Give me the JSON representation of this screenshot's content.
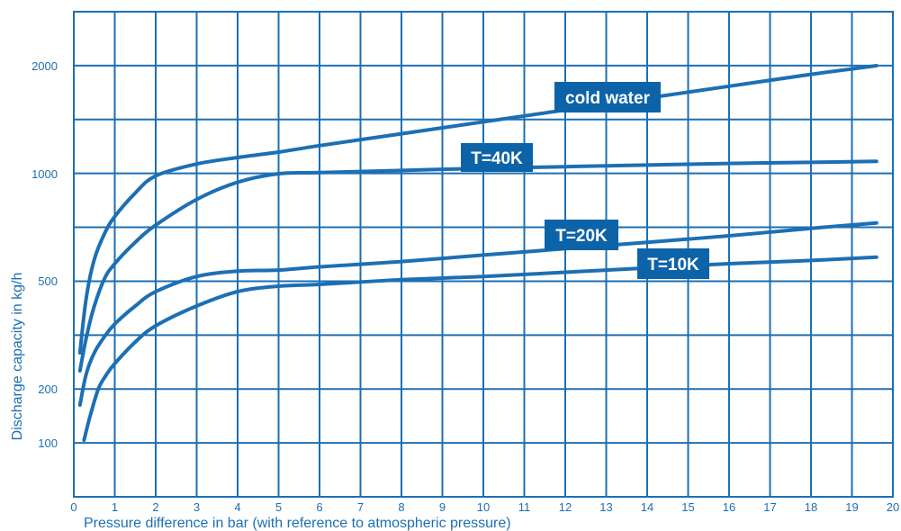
{
  "chart_data": {
    "type": "line",
    "xlabel": "Pressure difference in bar (with reference to atmospheric pressure)",
    "ylabel": "Discharge capacity in kg/h",
    "xlim": [
      0,
      20
    ],
    "x_ticks": [
      "0",
      "1",
      "2",
      "3",
      "4",
      "5",
      "6",
      "7",
      "8",
      "9",
      "10",
      "11",
      "12",
      "13",
      "14",
      "15",
      "16",
      "17",
      "18",
      "19",
      "20"
    ],
    "y_ticks": [
      "100",
      "200",
      "500",
      "1000",
      "2000"
    ],
    "grid": true,
    "colors": {
      "line": "#1c6fb4",
      "label_box": "#0d63a8",
      "label_text": "#ffffff"
    },
    "series": [
      {
        "name": "cold water",
        "x": [
          0.15,
          0.3,
          0.5,
          0.75,
          1,
          1.5,
          2,
          3,
          4,
          5,
          6,
          8,
          10,
          12,
          14,
          16,
          18,
          19.6
        ],
        "y": [
          300,
          450,
          600,
          720,
          800,
          910,
          990,
          1090,
          1150,
          1200,
          1260,
          1370,
          1480,
          1590,
          1700,
          1810,
          1920,
          2000
        ]
      },
      {
        "name": "T=40K",
        "x": [
          0.15,
          0.3,
          0.5,
          0.75,
          1,
          1.5,
          2,
          3,
          4,
          5,
          6,
          8,
          10,
          12,
          14,
          16,
          18,
          19.6
        ],
        "y": [
          250,
          340,
          430,
          510,
          580,
          680,
          760,
          880,
          960,
          1000,
          1010,
          1030,
          1050,
          1065,
          1080,
          1095,
          1105,
          1115
        ]
      },
      {
        "name": "T=20K",
        "x": [
          0.15,
          0.3,
          0.5,
          0.75,
          1,
          1.5,
          2,
          3,
          4,
          5,
          6,
          8,
          10,
          12,
          14,
          16,
          18,
          19.6
        ],
        "y": [
          170,
          240,
          300,
          345,
          380,
          430,
          470,
          520,
          545,
          550,
          565,
          590,
          620,
          650,
          680,
          710,
          745,
          770
        ]
      },
      {
        "name": "T=10K",
        "x": [
          0.25,
          0.4,
          0.6,
          0.8,
          1,
          1.5,
          2,
          3,
          4,
          5,
          6,
          8,
          10,
          12,
          14,
          16,
          18,
          19.6
        ],
        "y": [
          105,
          150,
          200,
          240,
          270,
          330,
          375,
          430,
          470,
          485,
          490,
          505,
          520,
          540,
          560,
          580,
          595,
          610
        ]
      }
    ]
  }
}
